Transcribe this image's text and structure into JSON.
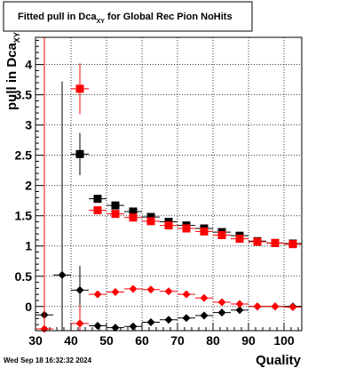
{
  "chart_data": {
    "type": "scatter",
    "title": {
      "main": "Fitted pull in Dca",
      "sub": "XY",
      "rest": " for Global Rec Pion NoHits"
    },
    "ylabel": {
      "main": "pull in Dca",
      "sub": "XY"
    },
    "xlabel": "Quality",
    "xlim": [
      30,
      105
    ],
    "ylim": [
      -0.4,
      4.45
    ],
    "x_ticks": [
      30,
      40,
      50,
      60,
      70,
      80,
      90,
      100
    ],
    "y_ticks": [
      0,
      0.5,
      1,
      1.5,
      2,
      2.5,
      3,
      3.5,
      4
    ],
    "y_tick_labels": [
      "0",
      "0.5",
      "1",
      "1.5",
      "2",
      "2.5",
      "3",
      "3.5",
      "4"
    ],
    "grid": true,
    "series": [
      {
        "color": "#000000",
        "marker": "square",
        "points": [
          {
            "x": 42.5,
            "y": 2.52,
            "err": 0.35
          },
          {
            "x": 47.5,
            "y": 1.78,
            "err": 0.05
          },
          {
            "x": 52.5,
            "y": 1.67,
            "err": 0.03
          },
          {
            "x": 57.5,
            "y": 1.57,
            "err": 0.03
          },
          {
            "x": 62.5,
            "y": 1.48,
            "err": 0.02
          },
          {
            "x": 67.5,
            "y": 1.4,
            "err": 0.02
          },
          {
            "x": 72.5,
            "y": 1.34,
            "err": 0.02
          },
          {
            "x": 77.5,
            "y": 1.29,
            "err": 0.02
          },
          {
            "x": 82.5,
            "y": 1.23,
            "err": 0.02
          },
          {
            "x": 87.5,
            "y": 1.17,
            "err": 0.02
          },
          {
            "x": 92.5,
            "y": 1.08,
            "err": 0.02
          },
          {
            "x": 97.5,
            "y": 1.05,
            "err": 0.02
          },
          {
            "x": 102.5,
            "y": 1.04,
            "err": 0.02
          }
        ]
      },
      {
        "color": "#ff0000",
        "marker": "square",
        "points": [
          {
            "x": 42.5,
            "y": 3.6,
            "err": 0.42
          },
          {
            "x": 47.5,
            "y": 1.59,
            "err": 0.04
          },
          {
            "x": 52.5,
            "y": 1.53,
            "err": 0.03
          },
          {
            "x": 57.5,
            "y": 1.47,
            "err": 0.03
          },
          {
            "x": 62.5,
            "y": 1.41,
            "err": 0.02
          },
          {
            "x": 67.5,
            "y": 1.34,
            "err": 0.02
          },
          {
            "x": 72.5,
            "y": 1.29,
            "err": 0.02
          },
          {
            "x": 77.5,
            "y": 1.24,
            "err": 0.02
          },
          {
            "x": 82.5,
            "y": 1.18,
            "err": 0.02
          },
          {
            "x": 87.5,
            "y": 1.12,
            "err": 0.02
          },
          {
            "x": 92.5,
            "y": 1.07,
            "err": 0.02
          },
          {
            "x": 97.5,
            "y": 1.05,
            "err": 0.02
          },
          {
            "x": 102.5,
            "y": 1.03,
            "err": 0.02
          }
        ]
      },
      {
        "color": "#000000",
        "marker": "diamond",
        "points": [
          {
            "x": 32.5,
            "y": -0.14,
            "err": 1.6
          },
          {
            "x": 37.5,
            "y": 0.52,
            "err": 3.2
          },
          {
            "x": 42.5,
            "y": 0.27,
            "err": 0.4
          },
          {
            "x": 47.5,
            "y": -0.32,
            "err": 0.05
          },
          {
            "x": 52.5,
            "y": -0.35,
            "err": 0.03
          },
          {
            "x": 57.5,
            "y": -0.33,
            "err": 0.03
          },
          {
            "x": 62.5,
            "y": -0.26,
            "err": 0.02
          },
          {
            "x": 67.5,
            "y": -0.22,
            "err": 0.02
          },
          {
            "x": 72.5,
            "y": -0.19,
            "err": 0.02
          },
          {
            "x": 77.5,
            "y": -0.15,
            "err": 0.02
          },
          {
            "x": 82.5,
            "y": -0.1,
            "err": 0.02
          },
          {
            "x": 87.5,
            "y": -0.06,
            "err": 0.02
          },
          {
            "x": 92.5,
            "y": 0.0,
            "err": 0.02
          },
          {
            "x": 97.5,
            "y": 0.0,
            "err": 0.02
          },
          {
            "x": 102.5,
            "y": 0.0,
            "err": 0.02
          }
        ]
      },
      {
        "color": "#ff0000",
        "marker": "diamond",
        "points": [
          {
            "x": 32.5,
            "y": -0.37,
            "err": 5.0
          },
          {
            "x": 42.5,
            "y": -0.28,
            "err": 0.3
          },
          {
            "x": 47.5,
            "y": 0.2,
            "err": 0.03
          },
          {
            "x": 52.5,
            "y": 0.24,
            "err": 0.03
          },
          {
            "x": 57.5,
            "y": 0.29,
            "err": 0.02
          },
          {
            "x": 62.5,
            "y": 0.28,
            "err": 0.02
          },
          {
            "x": 67.5,
            "y": 0.25,
            "err": 0.02
          },
          {
            "x": 72.5,
            "y": 0.2,
            "err": 0.02
          },
          {
            "x": 77.5,
            "y": 0.14,
            "err": 0.02
          },
          {
            "x": 82.5,
            "y": 0.07,
            "err": 0.02
          },
          {
            "x": 87.5,
            "y": 0.04,
            "err": 0.02
          },
          {
            "x": 92.5,
            "y": 0.0,
            "err": 0.02
          },
          {
            "x": 97.5,
            "y": 0.0,
            "err": 0.02
          },
          {
            "x": 102.5,
            "y": -0.01,
            "err": 0.02
          }
        ]
      }
    ]
  },
  "footer": {
    "timestamp": "Wed Sep 18 16:32:32 2024"
  }
}
